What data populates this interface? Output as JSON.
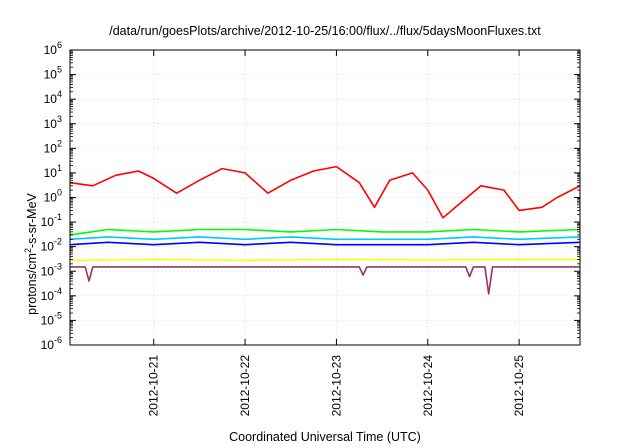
{
  "chart_data": {
    "type": "line",
    "title": "/data/run/goesPlots/archive/2012-10-25/16:00/flux/../flux/5daysMoonFluxes.txt",
    "xlabel": "Coordinated Universal Time (UTC)",
    "ylabel": {
      "prefix": "protons/cm",
      "sup": "2",
      "suffix": "-s-sr-MeV"
    },
    "y_scale": "log",
    "ylim": [
      1e-06,
      1000000.0
    ],
    "y_ticks": [
      {
        "value": 1e-06,
        "base": "10",
        "exp": "-6"
      },
      {
        "value": 1e-05,
        "base": "10",
        "exp": "-5"
      },
      {
        "value": 0.0001,
        "base": "10",
        "exp": "-4"
      },
      {
        "value": 0.001,
        "base": "10",
        "exp": "-3"
      },
      {
        "value": 0.01,
        "base": "10",
        "exp": "-2"
      },
      {
        "value": 0.1,
        "base": "10",
        "exp": "-1"
      },
      {
        "value": 1.0,
        "base": "10",
        "exp": "0"
      },
      {
        "value": 10.0,
        "base": "10",
        "exp": "1"
      },
      {
        "value": 100.0,
        "base": "10",
        "exp": "2"
      },
      {
        "value": 1000.0,
        "base": "10",
        "exp": "3"
      },
      {
        "value": 10000.0,
        "base": "10",
        "exp": "4"
      },
      {
        "value": 100000.0,
        "base": "10",
        "exp": "5"
      },
      {
        "value": 1000000.0,
        "base": "10",
        "exp": "6"
      }
    ],
    "xlim": [
      "2012-10-20T02:00",
      "2012-10-25T16:00"
    ],
    "x_ticks": [
      "2012-10-21",
      "2012-10-22",
      "2012-10-23",
      "2012-10-24",
      "2012-10-25"
    ],
    "grid": true,
    "legend": "none",
    "series": [
      {
        "color": "#ff0000",
        "x": [
          "2012-10-20T02:00",
          "2012-10-20T08:00",
          "2012-10-20T14:00",
          "2012-10-20T20:00",
          "2012-10-21T00:00",
          "2012-10-21T06:00",
          "2012-10-21T12:00",
          "2012-10-21T18:00",
          "2012-10-22T00:00",
          "2012-10-22T06:00",
          "2012-10-22T12:00",
          "2012-10-22T18:00",
          "2012-10-23T00:00",
          "2012-10-23T06:00",
          "2012-10-23T10:00",
          "2012-10-23T14:00",
          "2012-10-23T20:00",
          "2012-10-24T00:00",
          "2012-10-24T04:00",
          "2012-10-24T08:00",
          "2012-10-24T14:00",
          "2012-10-24T20:00",
          "2012-10-25T00:00",
          "2012-10-25T06:00",
          "2012-10-25T10:00",
          "2012-10-25T16:00"
        ],
        "values": [
          4,
          3,
          8,
          12,
          6,
          1.5,
          5,
          15,
          10,
          1.5,
          5,
          12,
          18,
          4,
          0.4,
          5,
          10,
          2,
          0.15,
          0.5,
          3,
          2,
          0.3,
          0.4,
          1,
          3
        ]
      },
      {
        "color": "#00ff00",
        "x": [
          "2012-10-20T02:00",
          "2012-10-20T12:00",
          "2012-10-21T00:00",
          "2012-10-21T12:00",
          "2012-10-22T00:00",
          "2012-10-22T12:00",
          "2012-10-23T00:00",
          "2012-10-23T12:00",
          "2012-10-24T00:00",
          "2012-10-24T12:00",
          "2012-10-25T00:00",
          "2012-10-25T16:00"
        ],
        "values": [
          0.03,
          0.05,
          0.04,
          0.05,
          0.05,
          0.04,
          0.05,
          0.04,
          0.04,
          0.05,
          0.04,
          0.05
        ]
      },
      {
        "color": "#00c8ff",
        "x": [
          "2012-10-20T02:00",
          "2012-10-20T12:00",
          "2012-10-21T00:00",
          "2012-10-21T12:00",
          "2012-10-22T00:00",
          "2012-10-22T12:00",
          "2012-10-23T00:00",
          "2012-10-23T12:00",
          "2012-10-24T00:00",
          "2012-10-24T12:00",
          "2012-10-25T00:00",
          "2012-10-25T16:00"
        ],
        "values": [
          0.02,
          0.025,
          0.02,
          0.025,
          0.02,
          0.025,
          0.02,
          0.02,
          0.02,
          0.025,
          0.02,
          0.025
        ]
      },
      {
        "color": "#0000ff",
        "x": [
          "2012-10-20T02:00",
          "2012-10-20T12:00",
          "2012-10-21T00:00",
          "2012-10-21T12:00",
          "2012-10-22T00:00",
          "2012-10-22T12:00",
          "2012-10-23T00:00",
          "2012-10-23T12:00",
          "2012-10-24T00:00",
          "2012-10-24T12:00",
          "2012-10-25T00:00",
          "2012-10-25T16:00"
        ],
        "values": [
          0.012,
          0.015,
          0.012,
          0.015,
          0.012,
          0.015,
          0.012,
          0.012,
          0.012,
          0.015,
          0.012,
          0.015
        ]
      },
      {
        "color": "#ffff00",
        "x": [
          "2012-10-20T02:00",
          "2012-10-21T00:00",
          "2012-10-22T00:00",
          "2012-10-23T00:00",
          "2012-10-24T00:00",
          "2012-10-25T00:00",
          "2012-10-25T16:00"
        ],
        "values": [
          0.0028,
          0.003,
          0.0028,
          0.003,
          0.0029,
          0.003,
          0.003
        ]
      },
      {
        "color": "#993366",
        "x": [
          "2012-10-20T02:00",
          "2012-10-20T06:00",
          "2012-10-20T07:00",
          "2012-10-20T08:00",
          "2012-10-21T00:00",
          "2012-10-22T00:00",
          "2012-10-23T00:00",
          "2012-10-23T06:00",
          "2012-10-23T07:00",
          "2012-10-23T08:00",
          "2012-10-24T00:00",
          "2012-10-24T10:00",
          "2012-10-24T11:00",
          "2012-10-24T12:00",
          "2012-10-24T15:00",
          "2012-10-24T16:00",
          "2012-10-24T17:00",
          "2012-10-25T00:00",
          "2012-10-25T16:00"
        ],
        "values": [
          0.0015,
          0.0015,
          0.0004,
          0.0015,
          0.0015,
          0.0015,
          0.0015,
          0.0015,
          0.0007,
          0.0015,
          0.0015,
          0.0015,
          0.0006,
          0.0015,
          0.0015,
          0.00012,
          0.0015,
          0.0015,
          0.0015
        ]
      }
    ]
  }
}
